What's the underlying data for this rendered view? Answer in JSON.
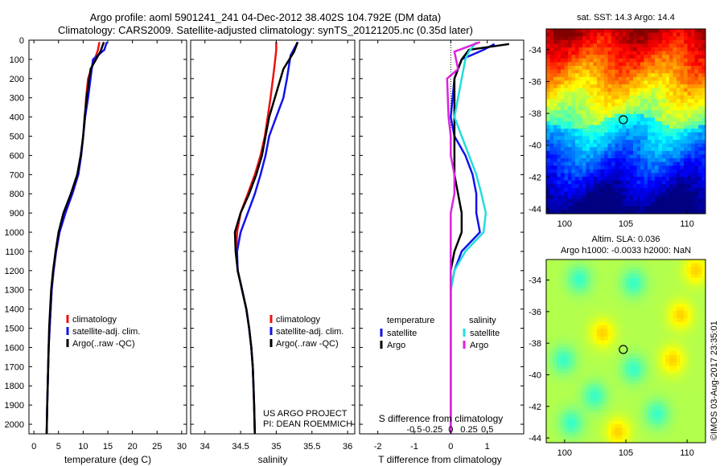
{
  "header": {
    "title_line1": "Argo profile: aoml 5901241_241 04-Dec-2012 38.402S 104.792E (DM data)",
    "title_line2": "Climatology: CARS2009. Satellite-adjusted climatology: synTS_20121205.nc (0.35d later)"
  },
  "depth_ticks": [
    0,
    100,
    200,
    300,
    400,
    500,
    600,
    700,
    800,
    900,
    1000,
    1100,
    1200,
    1300,
    1400,
    1500,
    1600,
    1700,
    1800,
    1900,
    2000
  ],
  "colors": {
    "climatology": "#ee1111",
    "satellite": "#1111ee",
    "argo": "#000000",
    "sal_satellite": "#22dddd",
    "sal_argo": "#dd22dd"
  },
  "chart_data": [
    {
      "type": "line",
      "id": "temperature",
      "xlabel": "temperature (deg C)",
      "ylabel": "",
      "xlim": [
        -1,
        31
      ],
      "ylim": [
        2050,
        0
      ],
      "xticks": [
        0,
        5,
        10,
        15,
        20,
        25,
        30
      ],
      "legend": {
        "placement": "lower-center",
        "entries": [
          "climatology",
          "satellite-adj. clim.",
          "Argo(..raw -QC)"
        ]
      },
      "series": [
        {
          "name": "climatology",
          "color": "#ee1111",
          "x": [
            13.3,
            13.0,
            11.0,
            10.6,
            10.4,
            10.0,
            9.6,
            9.0,
            7.8,
            6.4,
            5.2,
            4.5,
            4.0,
            3.6,
            3.4,
            3.2,
            3.0,
            2.9,
            2.8,
            2.7,
            2.6
          ],
          "y": [
            10,
            50,
            200,
            300,
            400,
            500,
            600,
            700,
            800,
            900,
            1000,
            1100,
            1200,
            1300,
            1400,
            1500,
            1600,
            1700,
            1800,
            1900,
            2050
          ]
        },
        {
          "name": "satellite-adj. clim.",
          "color": "#1111ee",
          "x": [
            14.8,
            14.3,
            12.0,
            11.0,
            10.4,
            10.0,
            9.6,
            9.0,
            7.8,
            6.4,
            5.2,
            4.5,
            4.0,
            3.6,
            3.4,
            3.2,
            3.0,
            2.9,
            2.8,
            2.7,
            2.6
          ],
          "y": [
            10,
            50,
            100,
            300,
            400,
            500,
            600,
            700,
            800,
            900,
            1000,
            1100,
            1200,
            1300,
            1400,
            1500,
            1600,
            1700,
            1800,
            1900,
            2050
          ]
        },
        {
          "name": "Argo(..raw -QC)",
          "color": "#000000",
          "x": [
            14.2,
            13.5,
            11.5,
            10.7,
            10.3,
            10.0,
            9.5,
            8.8,
            7.5,
            6.0,
            5.0,
            4.4,
            3.9,
            3.5,
            3.3,
            3.1,
            3.0,
            2.9,
            2.8,
            2.7,
            2.6
          ],
          "y": [
            10,
            60,
            150,
            300,
            400,
            500,
            600,
            700,
            800,
            900,
            1000,
            1100,
            1200,
            1300,
            1400,
            1500,
            1600,
            1700,
            1800,
            1900,
            2050
          ]
        }
      ]
    },
    {
      "type": "line",
      "id": "salinity",
      "xlabel": "salinity",
      "ylabel": "",
      "xlim": [
        33.8,
        36.1
      ],
      "ylim": [
        2050,
        0
      ],
      "xticks": [
        34,
        34.5,
        35,
        35.5,
        36
      ],
      "xticklabels": [
        "34",
        "34.5",
        "35",
        "35.5",
        "36"
      ],
      "legend": {
        "placement": "lower-center",
        "entries": [
          "climatology",
          "satellite-adj. clim.",
          "Argo(..raw -QC)"
        ]
      },
      "annotation_line1": "US ARGO PROJECT",
      "annotation_line2": "PI: DEAN ROEMMICH",
      "series": [
        {
          "name": "climatology",
          "color": "#ee1111",
          "x": [
            35.0,
            35.0,
            34.97,
            34.92,
            34.88,
            34.84,
            34.78,
            34.7,
            34.6,
            34.5,
            34.45,
            34.44,
            34.46,
            34.52,
            34.58,
            34.62,
            34.65,
            34.67,
            34.68,
            34.69,
            34.7
          ],
          "y": [
            10,
            50,
            150,
            300,
            400,
            500,
            600,
            700,
            800,
            900,
            1000,
            1100,
            1200,
            1300,
            1400,
            1500,
            1600,
            1700,
            1800,
            1900,
            2050
          ]
        },
        {
          "name": "satellite-adj. clim.",
          "color": "#1111ee",
          "x": [
            35.3,
            35.2,
            35.15,
            35.1,
            35.0,
            34.9,
            34.85,
            34.78,
            34.7,
            34.6,
            34.5,
            34.45,
            34.46,
            34.52,
            34.58,
            34.62,
            34.65,
            34.67,
            34.68,
            34.69,
            34.7
          ],
          "y": [
            10,
            80,
            200,
            300,
            400,
            500,
            600,
            700,
            800,
            900,
            1000,
            1100,
            1200,
            1300,
            1400,
            1500,
            1600,
            1700,
            1800,
            1900,
            2050
          ]
        },
        {
          "name": "Argo(..raw -QC)",
          "color": "#000000",
          "x": [
            35.3,
            35.25,
            35.1,
            34.98,
            34.9,
            34.85,
            34.8,
            34.72,
            34.62,
            34.5,
            34.42,
            34.43,
            34.46,
            34.52,
            34.58,
            34.62,
            34.65,
            34.67,
            34.68,
            34.69,
            34.7
          ],
          "y": [
            10,
            60,
            150,
            300,
            400,
            500,
            600,
            700,
            800,
            900,
            1000,
            1100,
            1200,
            1300,
            1400,
            1500,
            1600,
            1700,
            1800,
            1900,
            2050
          ]
        }
      ]
    },
    {
      "type": "line",
      "id": "difference",
      "xlabel": "T difference from climatology",
      "xlabel_top": "S difference from climatology",
      "ylabel": "",
      "xlim": [
        -2.5,
        2.0
      ],
      "ylim": [
        2050,
        0
      ],
      "xticks": [
        -2,
        -1,
        0,
        1
      ],
      "xticklabels": [
        "-2",
        "-1",
        "0",
        "1"
      ],
      "sticks": [
        -0.5,
        -0.25,
        0,
        0.25,
        0.5
      ],
      "sticklabels": [
        "-0.5",
        "-0.25",
        "0",
        "0.25",
        "0.5"
      ],
      "legend_temperature_title": "temperature",
      "legend_salinity_title": "salinity",
      "legend_satellite": "satellite",
      "legend_argo": "Argo",
      "series": [
        {
          "name": "temperature satellite",
          "color": "#1111ee",
          "x": [
            1.2,
            0.9,
            0.3,
            0.1,
            0.0,
            0.1,
            0.4,
            0.6,
            0.7,
            0.7,
            0.8,
            0.3,
            0.1,
            0.0,
            0.0,
            0.0,
            0.0,
            0.0,
            0.0,
            0.0,
            0.0
          ],
          "y": [
            20,
            50,
            100,
            200,
            400,
            500,
            600,
            700,
            800,
            900,
            1000,
            1100,
            1200,
            1300,
            1400,
            1500,
            1600,
            1700,
            1800,
            1900,
            2050
          ]
        },
        {
          "name": "temperature Argo",
          "color": "#000000",
          "x": [
            1.6,
            0.5,
            0.3,
            0.1,
            0.1,
            0.1,
            0.1,
            0.1,
            0.2,
            0.3,
            0.3,
            0.1,
            0.0,
            0.0,
            0.0,
            0.0,
            0.0,
            0.0,
            0.0,
            0.0,
            0.0
          ],
          "y": [
            20,
            50,
            100,
            200,
            400,
            500,
            600,
            700,
            800,
            900,
            1000,
            1100,
            1200,
            1300,
            1400,
            1500,
            1600,
            1700,
            1800,
            1900,
            2050
          ]
        },
        {
          "name": "salinity satellite",
          "color": "#22dddd",
          "x": [
            0.35,
            0.25,
            0.2,
            0.15,
            0.05,
            0.15,
            0.25,
            0.35,
            0.42,
            0.48,
            0.45,
            0.2,
            0.05,
            0.0,
            0.0,
            0.0,
            0.0,
            0.0,
            0.0,
            0.0,
            0.0
          ],
          "y": [
            10,
            60,
            100,
            200,
            400,
            500,
            600,
            700,
            800,
            900,
            1000,
            1100,
            1200,
            1300,
            1400,
            1500,
            1600,
            1700,
            1800,
            1900,
            2050
          ]
        },
        {
          "name": "salinity Argo",
          "color": "#dd22dd",
          "x": [
            0.4,
            0.05,
            0.1,
            -0.05,
            -0.03,
            0.0,
            0.0,
            0.05,
            0.05,
            0.0,
            0.0,
            0.0,
            0.0,
            0.0,
            0.0,
            0.0,
            0.0,
            0.0,
            0.0,
            0.0,
            0.0
          ],
          "y": [
            10,
            60,
            150,
            200,
            400,
            500,
            600,
            700,
            800,
            900,
            1000,
            1100,
            1200,
            1300,
            1400,
            1500,
            1600,
            1700,
            1800,
            1900,
            2050
          ]
        }
      ]
    },
    {
      "type": "heatmap",
      "id": "sst-map",
      "title": "sat. SST: 14.3 Argo: 14.4",
      "xlim": [
        98.5,
        111.5
      ],
      "ylim": [
        -44.3,
        -32.7
      ],
      "xticks": [
        100,
        105,
        110
      ],
      "yticks": [
        -34,
        -36,
        -38,
        -40,
        -42,
        -44
      ],
      "marker": {
        "lon": 104.79,
        "lat": -38.4
      }
    },
    {
      "type": "heatmap",
      "id": "sla-map",
      "title": "Altim. SLA: 0.036",
      "subtitle": "Argo h1000: -0.0033 h2000: NaN",
      "xlim": [
        98.5,
        111.5
      ],
      "ylim": [
        -44.3,
        -32.7
      ],
      "xticks": [
        100,
        105,
        110
      ],
      "yticks": [
        -34,
        -36,
        -38,
        -40,
        -42,
        -44
      ],
      "marker": {
        "lon": 104.79,
        "lat": -38.4
      }
    }
  ],
  "credit": "©IMOS 03-Aug-2017 23:35:01"
}
